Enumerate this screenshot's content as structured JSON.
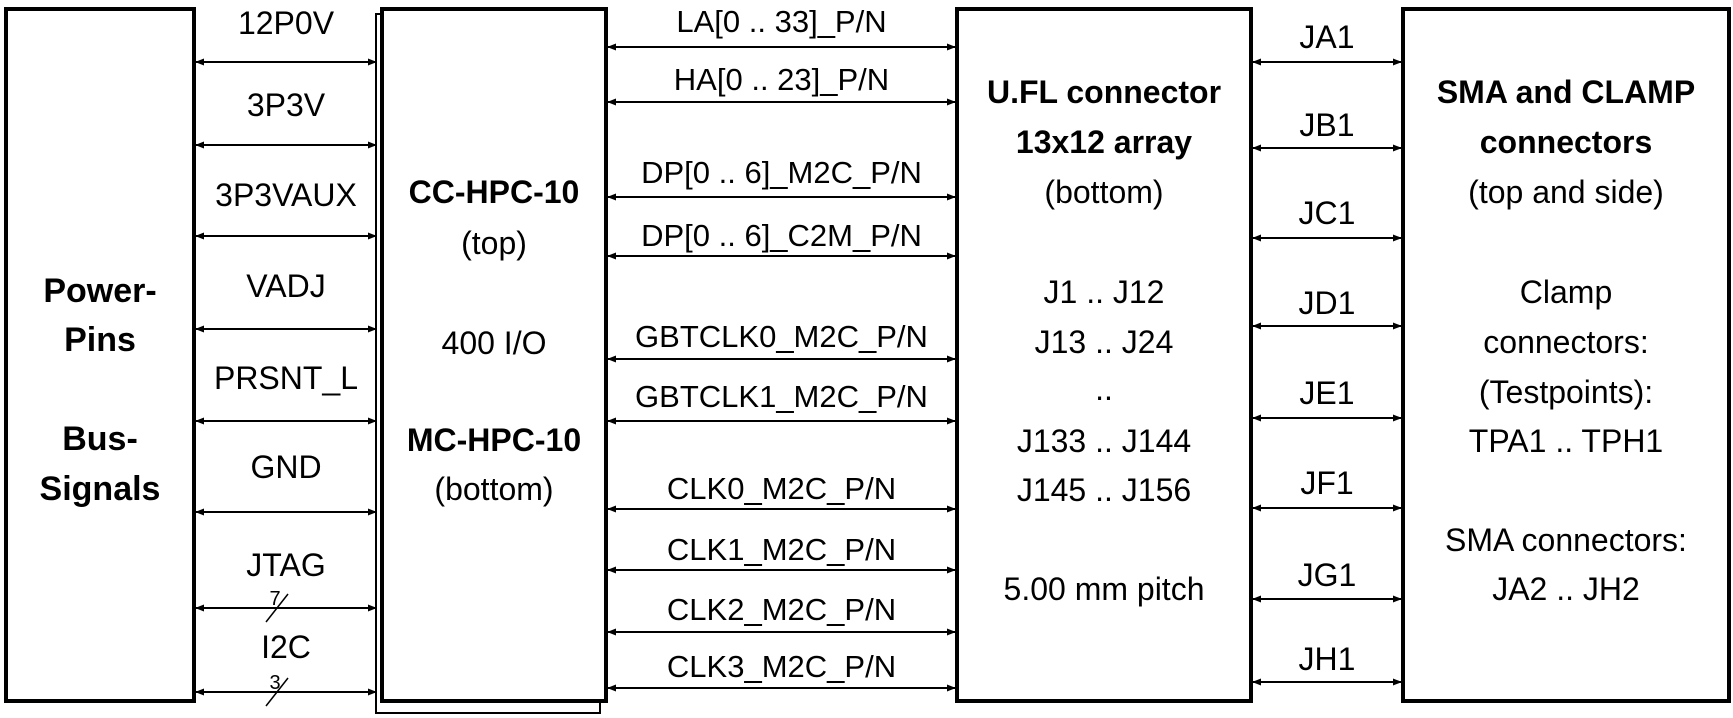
{
  "power_block": {
    "line1": "Power-",
    "line2": "Pins",
    "line3": "Bus-",
    "line4": "Signals"
  },
  "power_signals": [
    {
      "label": "12P0V"
    },
    {
      "label": "3P3V"
    },
    {
      "label": "3P3VAUX"
    },
    {
      "label": "VADJ"
    },
    {
      "label": "PRSNT_L"
    },
    {
      "label": "GND"
    },
    {
      "label": "JTAG",
      "bus_width": "7"
    },
    {
      "label": "I2C",
      "bus_width": "3"
    }
  ],
  "hpc_block": {
    "name_top": "CC-HPC-10",
    "pos_top": "(top)",
    "io": "400 I/O",
    "name_bottom": "MC-HPC-10",
    "pos_bottom": "(bottom)"
  },
  "hpc_signals": [
    {
      "label": "LA[0 .. 33]_P/N"
    },
    {
      "label": "HA[0 .. 23]_P/N"
    },
    {
      "label": "DP[0 .. 6]_M2C_P/N"
    },
    {
      "label": "DP[0 .. 6]_C2M_P/N"
    },
    {
      "label": "GBTCLK0_M2C_P/N"
    },
    {
      "label": "GBTCLK1_M2C_P/N"
    },
    {
      "label": "CLK0_M2C_P/N"
    },
    {
      "label": "CLK1_M2C_P/N"
    },
    {
      "label": "CLK2_M2C_P/N"
    },
    {
      "label": "CLK3_M2C_P/N"
    }
  ],
  "ufl_block": {
    "title1": "U.FL connector",
    "title2": "13x12 array",
    "pos": "(bottom)",
    "rows": [
      "J1 .. J12",
      "J13 .. J24",
      "..",
      "J133 .. J144",
      "J145 .. J156"
    ],
    "pitch": "5.00 mm pitch"
  },
  "j_signals": [
    {
      "label": "JA1"
    },
    {
      "label": "JB1"
    },
    {
      "label": "JC1"
    },
    {
      "label": "JD1"
    },
    {
      "label": "JE1"
    },
    {
      "label": "JF1"
    },
    {
      "label": "JG1"
    },
    {
      "label": "JH1"
    }
  ],
  "sma_block": {
    "title1": "SMA and CLAMP",
    "title2": "connectors",
    "pos": "(top and side)",
    "clamp1": "Clamp",
    "clamp2": "connectors:",
    "clamp3": "(Testpoints):",
    "clamp4": "TPA1 .. TPH1",
    "sma1": "SMA connectors:",
    "sma2": "JA2 .. JH2"
  }
}
